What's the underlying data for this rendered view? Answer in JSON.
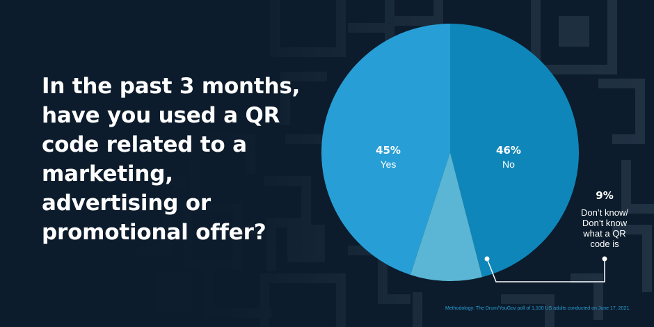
{
  "question": "In the past 3 months, have you used a QR code related to a marketing, advertising or promotional offer?",
  "methodology": "Methodology: The Drum/YouGov poll of 1,100 US adults conducted on June 17, 2021.",
  "colors": {
    "background": "#0c1c2c",
    "yes": "#279fd6",
    "no": "#0f86b9",
    "dont_know": "#5ab6d4",
    "qr_pattern": "#ffffff"
  },
  "chart_data": {
    "type": "pie",
    "slices": [
      {
        "label": "No",
        "value": 46,
        "value_label": "46%",
        "color": "#0f86b9"
      },
      {
        "label": "Don't know/ Don't know what a QR code is",
        "value": 9,
        "value_label": "9%",
        "color": "#5ab6d4"
      },
      {
        "label": "Yes",
        "value": 45,
        "value_label": "45%",
        "color": "#279fd6"
      }
    ],
    "start_angle": "12 o'clock",
    "direction": "clockwise",
    "labels": {
      "no_pct": "46%",
      "no_label": "No",
      "yes_pct": "45%",
      "yes_label": "Yes",
      "dk_pct": "9%",
      "dk_label": "Don’t know/ Don’t know what a QR code is"
    }
  }
}
